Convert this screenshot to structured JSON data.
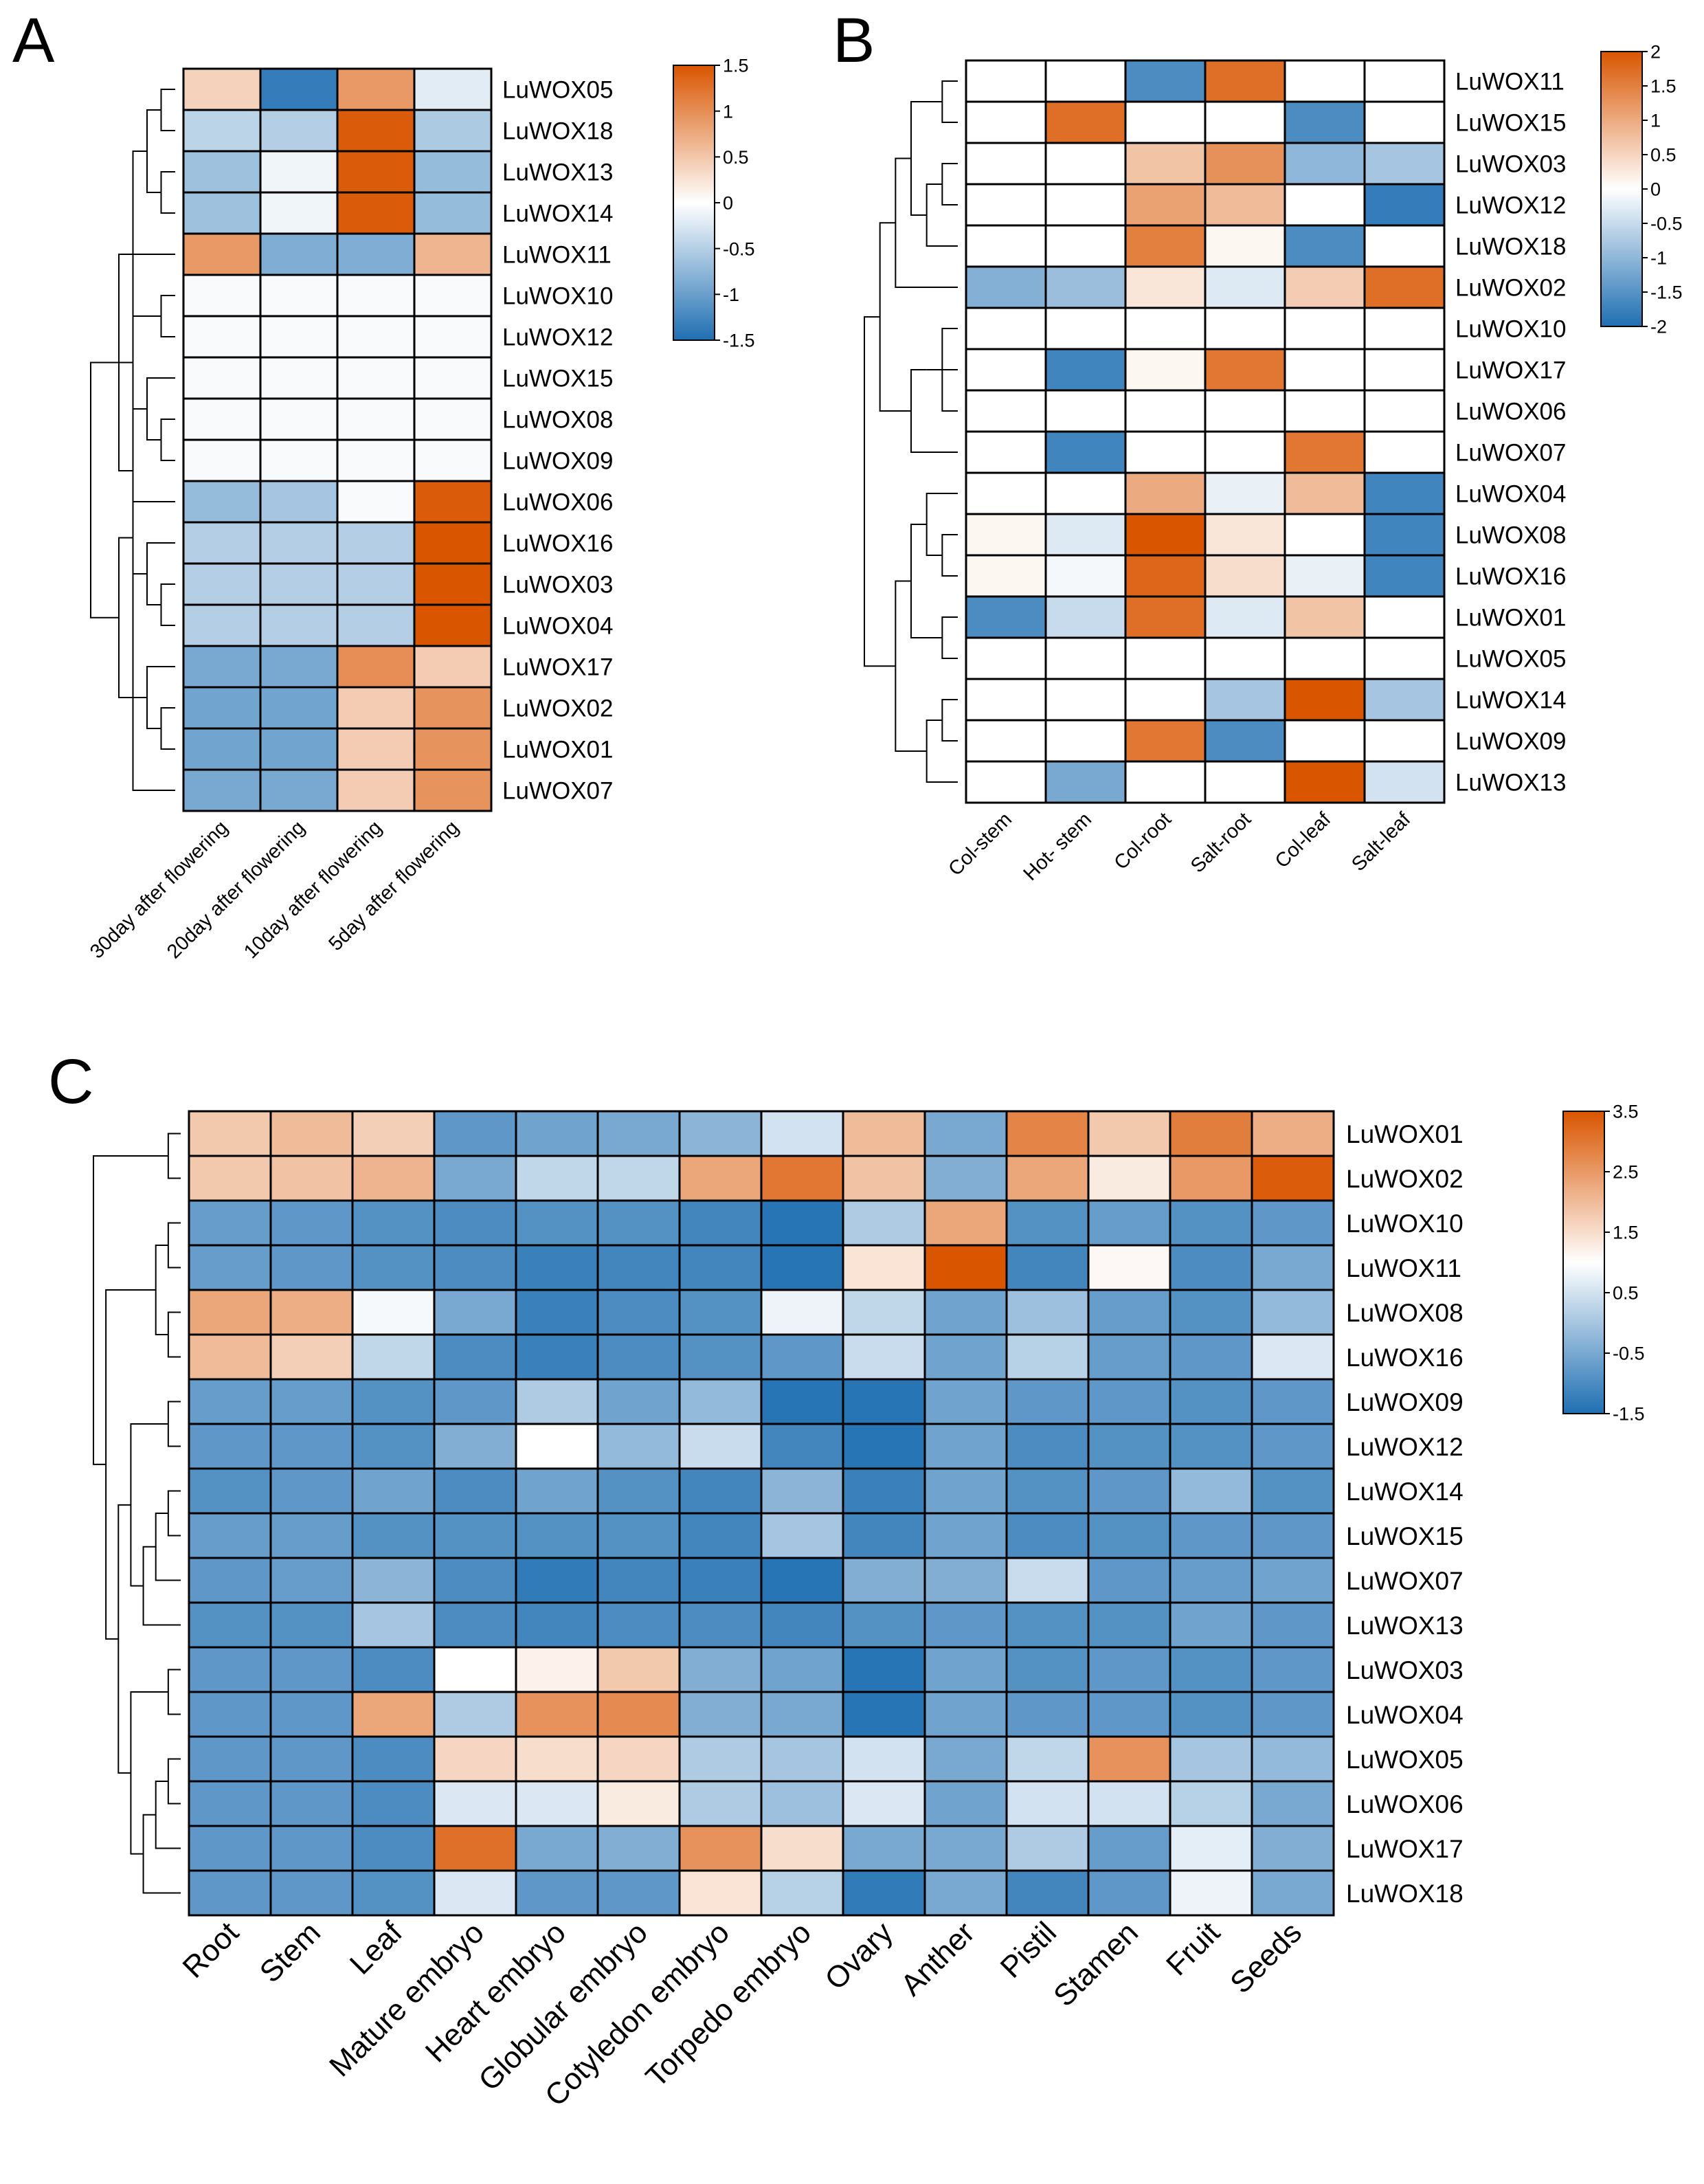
{
  "figure_type": "multi-panel heatmap",
  "palette": {
    "low": "#1f6fb2",
    "mid": "#ffffff",
    "high": "#d95500",
    "border": "#000000",
    "dendrogram": "#000000"
  },
  "chart_data": [
    {
      "type": "heatmap",
      "panel_label": "A",
      "rows": [
        "LuWOX05",
        "LuWOX18",
        "LuWOX13",
        "LuWOX14",
        "LuWOX11",
        "LuWOX10",
        "LuWOX12",
        "LuWOX15",
        "LuWOX08",
        "LuWOX09",
        "LuWOX06",
        "LuWOX16",
        "LuWOX03",
        "LuWOX04",
        "LuWOX17",
        "LuWOX02",
        "LuWOX01",
        "LuWOX07"
      ],
      "columns": [
        "30day after flowering",
        "20day after flowering",
        "10day after flowering",
        "5day after flowering"
      ],
      "values": [
        [
          0.4,
          -1.35,
          0.9,
          -0.2
        ],
        [
          -0.45,
          -0.5,
          1.45,
          -0.55
        ],
        [
          -0.65,
          -0.1,
          1.45,
          -0.7
        ],
        [
          -0.65,
          -0.1,
          1.45,
          -0.7
        ],
        [
          0.9,
          -0.85,
          -0.85,
          0.65
        ],
        [
          -0.05,
          -0.05,
          -0.05,
          -0.05
        ],
        [
          -0.05,
          -0.05,
          -0.05,
          -0.05
        ],
        [
          -0.05,
          -0.05,
          -0.05,
          -0.05
        ],
        [
          -0.05,
          -0.05,
          -0.05,
          -0.05
        ],
        [
          -0.05,
          -0.05,
          -0.05,
          -0.05
        ],
        [
          -0.7,
          -0.6,
          -0.05,
          1.45
        ],
        [
          -0.5,
          -0.5,
          -0.5,
          1.5
        ],
        [
          -0.5,
          -0.5,
          -0.5,
          1.5
        ],
        [
          -0.5,
          -0.5,
          -0.5,
          1.5
        ],
        [
          -0.9,
          -0.9,
          1.0,
          0.45
        ],
        [
          -0.95,
          -0.95,
          0.45,
          0.95
        ],
        [
          -0.95,
          -0.95,
          0.45,
          0.95
        ],
        [
          -0.9,
          -0.9,
          0.45,
          0.95
        ]
      ],
      "colorbar": {
        "min": -1.5,
        "max": 1.5,
        "ticks": [
          "1.5",
          "1",
          "0.5",
          "0",
          "-0.5",
          "-1",
          "-1.5"
        ]
      },
      "dendrogram": [
        [
          0,
          1
        ],
        [
          2,
          3
        ],
        [
          19,
          18
        ],
        [
          20,
          17
        ],
        [
          21,
          4
        ],
        [
          5,
          6
        ],
        [
          8,
          9
        ],
        [
          7,
          24
        ],
        [
          23,
          25
        ],
        [
          22,
          26
        ],
        [
          12,
          13
        ],
        [
          11,
          28
        ],
        [
          10,
          29
        ],
        [
          15,
          16
        ],
        [
          31,
          14
        ],
        [
          32,
          30
        ],
        [
          27,
          33
        ]
      ]
    },
    {
      "type": "heatmap",
      "panel_label": "B",
      "rows": [
        "LuWOX11",
        "LuWOX15",
        "LuWOX03",
        "LuWOX12",
        "LuWOX18",
        "LuWOX02",
        "LuWOX10",
        "LuWOX17",
        "LuWOX06",
        "LuWOX07",
        "LuWOX04",
        "LuWOX08",
        "LuWOX16",
        "LuWOX01",
        "LuWOX05",
        "LuWOX14",
        "LuWOX09",
        "LuWOX13"
      ],
      "columns": [
        "Col-stem",
        "Hot- stem",
        "Col-root",
        "Salt-root",
        "Col-leaf",
        "Salt-leaf"
      ],
      "values": [
        [
          0,
          0,
          -1.6,
          1.7,
          0,
          0
        ],
        [
          0,
          1.7,
          0,
          0,
          -1.6,
          0
        ],
        [
          0,
          0,
          0.7,
          1.3,
          -1.0,
          -0.8
        ],
        [
          0,
          0,
          1.1,
          0.8,
          0,
          -1.8
        ],
        [
          0,
          0,
          1.5,
          0.1,
          -1.6,
          0
        ],
        [
          -1.1,
          -0.9,
          0.3,
          -0.3,
          0.6,
          1.7
        ],
        [
          0,
          0,
          0,
          0,
          0,
          0
        ],
        [
          0,
          -1.7,
          0.1,
          1.6,
          0,
          0
        ],
        [
          0,
          0,
          0,
          0,
          0,
          0
        ],
        [
          0,
          -1.7,
          0,
          0,
          1.6,
          0
        ],
        [
          0,
          0,
          1.0,
          -0.2,
          0.8,
          -1.7
        ],
        [
          0.1,
          -0.3,
          2.0,
          0.3,
          0,
          -1.7
        ],
        [
          0.1,
          -0.1,
          1.8,
          0.4,
          -0.2,
          -1.7
        ],
        [
          -1.6,
          -0.5,
          1.7,
          -0.3,
          0.7,
          0
        ],
        [
          0,
          0,
          0,
          0,
          0,
          0
        ],
        [
          0,
          0,
          0,
          -0.8,
          2.0,
          -0.8
        ],
        [
          0,
          0,
          1.6,
          -1.6,
          0,
          0
        ],
        [
          0,
          -1.2,
          0,
          0,
          2.0,
          -0.4
        ]
      ],
      "colorbar": {
        "min": -2,
        "max": 2,
        "ticks": [
          "2",
          "1.5",
          "1",
          "0.5",
          "0",
          "-0.5",
          "-1",
          "-1.5",
          "-2"
        ]
      },
      "dendrogram": [
        [
          0,
          1
        ],
        [
          2,
          3
        ],
        [
          19,
          4
        ],
        [
          20,
          18
        ],
        [
          21,
          5
        ],
        [
          6,
          8
        ],
        [
          23,
          7
        ],
        [
          24,
          9
        ],
        [
          22,
          25
        ],
        [
          11,
          12
        ],
        [
          10,
          27
        ],
        [
          13,
          14
        ],
        [
          28,
          29
        ],
        [
          15,
          16
        ],
        [
          31,
          17
        ],
        [
          30,
          32
        ],
        [
          26,
          33
        ]
      ]
    },
    {
      "type": "heatmap",
      "panel_label": "C",
      "rows": [
        "LuWOX01",
        "LuWOX02",
        "LuWOX10",
        "LuWOX11",
        "LuWOX08",
        "LuWOX16",
        "LuWOX09",
        "LuWOX12",
        "LuWOX14",
        "LuWOX15",
        "LuWOX07",
        "LuWOX13",
        "LuWOX03",
        "LuWOX04",
        "LuWOX05",
        "LuWOX06",
        "LuWOX17",
        "LuWOX18"
      ],
      "columns": [
        "Root",
        "Stem",
        "Leaf",
        "Mature embryo",
        "Heart embryo",
        "Globular embryo",
        "Cotyledon embryo",
        "Torpedo embryo",
        "Ovary",
        "Anther",
        "Pistil",
        "Stamen",
        "Fruit",
        "Seeds"
      ],
      "values": [
        [
          1.8,
          2.0,
          1.7,
          -0.8,
          -0.6,
          -0.5,
          -0.3,
          0.5,
          2.0,
          -0.5,
          2.8,
          1.8,
          2.9,
          2.2
        ],
        [
          1.8,
          1.9,
          2.1,
          -0.5,
          0.3,
          0.3,
          2.3,
          3.0,
          1.9,
          -0.4,
          2.3,
          1.3,
          2.5,
          3.4
        ],
        [
          -0.7,
          -0.8,
          -0.9,
          -1.0,
          -0.9,
          -0.9,
          -1.1,
          -1.4,
          0.1,
          2.3,
          -0.9,
          -0.7,
          -0.9,
          -0.8
        ],
        [
          -0.7,
          -0.8,
          -0.9,
          -1.0,
          -1.2,
          -1.1,
          -1.1,
          -1.4,
          1.4,
          3.5,
          -1.1,
          1.1,
          -1.0,
          -0.5
        ],
        [
          2.3,
          2.2,
          0.9,
          -0.5,
          -1.2,
          -1.0,
          -0.9,
          0.8,
          0.3,
          -0.6,
          -0.1,
          -0.7,
          -0.9,
          -0.2
        ],
        [
          2.0,
          1.7,
          0.3,
          -1.0,
          -1.2,
          -1.0,
          -0.9,
          -0.8,
          0.4,
          -0.6,
          0.2,
          -0.7,
          -0.8,
          0.6
        ],
        [
          -0.7,
          -0.7,
          -0.9,
          -0.8,
          0.1,
          -0.6,
          -0.2,
          -1.4,
          -1.4,
          -0.6,
          -0.8,
          -0.8,
          -0.9,
          -0.8
        ],
        [
          -0.8,
          -0.8,
          -0.9,
          -0.4,
          1.0,
          -0.2,
          0.4,
          -1.1,
          -1.4,
          -0.6,
          -1.0,
          -0.9,
          -0.9,
          -0.8
        ],
        [
          -0.9,
          -0.8,
          -0.6,
          -1.0,
          -0.6,
          -0.9,
          -1.1,
          -0.3,
          -1.2,
          -0.6,
          -0.9,
          -0.8,
          -0.2,
          -0.9
        ],
        [
          -0.7,
          -0.7,
          -0.9,
          -0.9,
          -0.9,
          -0.9,
          -1.1,
          0.0,
          -1.1,
          -0.6,
          -1.0,
          -0.9,
          -0.8,
          -0.8
        ],
        [
          -0.8,
          -0.7,
          -0.3,
          -1.0,
          -1.3,
          -1.1,
          -1.2,
          -1.4,
          -0.4,
          -0.4,
          0.4,
          -0.8,
          -0.7,
          -0.6
        ],
        [
          -0.9,
          -0.9,
          0.0,
          -1.0,
          -1.1,
          -1.0,
          -1.0,
          -1.1,
          -0.9,
          -0.8,
          -0.9,
          -0.9,
          -0.6,
          -0.8
        ],
        [
          -0.8,
          -0.8,
          -1.0,
          1.0,
          1.2,
          1.8,
          -0.4,
          -0.6,
          -1.4,
          -0.6,
          -0.9,
          -0.8,
          -0.9,
          -0.8
        ],
        [
          -0.8,
          -0.8,
          2.3,
          0.1,
          2.6,
          2.7,
          -0.4,
          -0.5,
          -1.4,
          -0.6,
          -0.8,
          -0.8,
          -0.9,
          -0.8
        ],
        [
          -0.8,
          -0.8,
          -1.0,
          1.6,
          1.5,
          1.6,
          0.1,
          0.0,
          0.5,
          -0.5,
          0.3,
          2.6,
          0.0,
          -0.2
        ],
        [
          -0.8,
          -0.8,
          -1.0,
          0.6,
          0.6,
          1.3,
          0.1,
          -0.1,
          0.6,
          -0.6,
          0.5,
          0.5,
          0.2,
          -0.5
        ],
        [
          -0.8,
          -0.8,
          -1.0,
          3.1,
          -0.5,
          -0.4,
          2.6,
          1.5,
          -0.5,
          -0.5,
          0.1,
          -0.7,
          0.7,
          -0.4
        ],
        [
          -0.8,
          -0.8,
          -0.9,
          0.6,
          -0.8,
          -0.8,
          1.4,
          0.2,
          -1.3,
          -0.5,
          -1.1,
          -0.8,
          0.8,
          -0.5
        ]
      ],
      "colorbar": {
        "min": -1.5,
        "max": 3.5,
        "ticks": [
          "3.5",
          "2.5",
          "1.5",
          "0.5",
          "-0.5",
          "-1.5"
        ]
      },
      "dendrogram": [
        [
          0,
          1
        ],
        [
          2,
          3
        ],
        [
          4,
          5
        ],
        [
          19,
          20
        ],
        [
          6,
          7
        ],
        [
          8,
          9
        ],
        [
          23,
          10
        ],
        [
          24,
          11
        ],
        [
          22,
          25
        ],
        [
          12,
          13
        ],
        [
          14,
          15
        ],
        [
          28,
          16
        ],
        [
          29,
          17
        ],
        [
          27,
          30
        ],
        [
          26,
          31
        ],
        [
          21,
          32
        ],
        [
          18,
          33
        ]
      ]
    }
  ]
}
